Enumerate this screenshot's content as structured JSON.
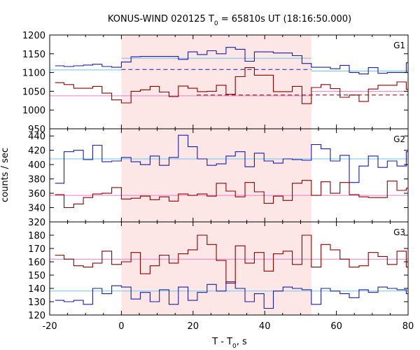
{
  "chart_data": {
    "type": "line",
    "title_main": "KONUS-WIND 020125 T",
    "title_sub": "0",
    "title_rest": " = 65810s UT (18:16:50.000)",
    "xlabel_main": "T - T",
    "xlabel_sub": "0",
    "xlabel_rest": ", s",
    "ylabel": "counts / sec",
    "xlim": [
      -20,
      80
    ],
    "x_ticks": [
      "-20",
      "0",
      "20",
      "40",
      "60",
      "80"
    ],
    "shaded_interval": [
      0,
      53
    ],
    "colors": {
      "high_band": "#1c1ca8",
      "low_band": "#8b0000",
      "bg_fit_light": "#6ec8e8",
      "bg_fit_pink": "#e87ec8",
      "shade": "#fde6e6"
    },
    "panels": [
      {
        "label": "G1",
        "ylim": [
          950,
          1200
        ],
        "y_ticks": [
          950,
          1000,
          1050,
          1100,
          1150,
          1200
        ],
        "y_tick_labels": [
          "950",
          "1000",
          "1050",
          "1100",
          "1150",
          "1200"
        ],
        "series": [
          {
            "color": "high_band",
            "bin_edges": [
              -18.5,
              -16.0,
              -13.3,
              -10.6,
              -8.0,
              -5.4,
              -2.7,
              0,
              2.7,
              5.3,
              8.0,
              10.6,
              13.3,
              15.9,
              18.6,
              21.2,
              23.9,
              26.5,
              29.2,
              31.8,
              34.5,
              37.1,
              39.8,
              42.4,
              45.1,
              47.7,
              50.4,
              53.0,
              55.7,
              58.3,
              61.0,
              63.6,
              66.3,
              68.9,
              71.6,
              74.2,
              76.9,
              79.5,
              80
            ],
            "values": [
              1118,
              1116,
              1118,
              1120,
              1122,
              1116,
              1114,
              1128,
              1142,
              1143,
              1143,
              1143,
              1143,
              1135,
              1155,
              1148,
              1158,
              1150,
              1167,
              1162,
              1130,
              1155,
              1155,
              1152,
              1152,
              1145,
              1124,
              1114,
              1114,
              1110,
              1119,
              1100,
              1096,
              1113,
              1098,
              1100,
              1100,
              1126
            ]
          },
          {
            "color": "low_band",
            "bin_edges": [
              -18.5,
              -16.0,
              -13.3,
              -10.6,
              -8.0,
              -5.4,
              -2.7,
              0,
              2.7,
              5.3,
              8.0,
              10.6,
              13.3,
              15.9,
              18.6,
              21.2,
              23.9,
              26.5,
              29.2,
              31.8,
              34.5,
              37.1,
              39.8,
              42.4,
              45.1,
              47.7,
              50.4,
              53.0,
              55.7,
              58.3,
              61.0,
              63.6,
              66.3,
              68.9,
              71.6,
              74.2,
              76.9,
              79.5,
              80
            ],
            "values": [
              1073,
              1068,
              1058,
              1058,
              1063,
              1045,
              1027,
              1019,
              1050,
              1054,
              1063,
              1048,
              1036,
              1064,
              1058,
              1049,
              1050,
              1066,
              1042,
              1089,
              1113,
              1093,
              1093,
              1049,
              1049,
              1063,
              1017,
              1060,
              1068,
              1057,
              1034,
              1040,
              1023,
              1056,
              1066,
              1066,
              1075,
              1055
            ]
          }
        ],
        "fits": [
          {
            "color": "bg_fit_light",
            "style": "solid",
            "x": [
              -20,
              0
            ],
            "y": 1107
          },
          {
            "color": "bg_fit_light",
            "style": "solid",
            "x": [
              0,
              53
            ],
            "y": 1138
          },
          {
            "color": "bg_fit_light",
            "style": "solid",
            "x": [
              53,
              80
            ],
            "y": 1104
          },
          {
            "color": "high_band",
            "style": "dashed",
            "x": [
              0,
              53
            ],
            "y": 1108
          },
          {
            "color": "bg_fit_pink",
            "style": "solid",
            "x": [
              -20,
              0
            ],
            "y": 1038
          },
          {
            "color": "bg_fit_pink",
            "style": "solid",
            "x": [
              0,
              53
            ],
            "y": 1038
          },
          {
            "color": "bg_fit_pink",
            "style": "solid",
            "x": [
              53,
              80
            ],
            "y": 1050
          },
          {
            "color": "low_band",
            "style": "dashed",
            "x": [
              21,
              80
            ],
            "y": 1040
          }
        ]
      },
      {
        "label": "G2",
        "ylim": [
          320,
          450
        ],
        "y_ticks": [
          320,
          340,
          360,
          380,
          400,
          420,
          440
        ],
        "y_tick_labels": [
          "320",
          "340",
          "360",
          "380",
          "400",
          "420",
          "440"
        ],
        "series": [
          {
            "color": "high_band",
            "bin_edges": [
              -18.5,
              -16.0,
              -13.3,
              -10.6,
              -8.0,
              -5.4,
              -2.7,
              0,
              2.7,
              5.3,
              8.0,
              10.6,
              13.3,
              15.9,
              18.6,
              21.2,
              23.9,
              26.5,
              29.2,
              31.8,
              34.5,
              37.1,
              39.8,
              42.4,
              45.1,
              47.7,
              50.4,
              53.0,
              55.7,
              58.3,
              61.0,
              63.6,
              66.3,
              68.9,
              71.6,
              74.2,
              76.9,
              79.5,
              80
            ],
            "values": [
              374,
              418,
              420,
              407,
              427,
              404,
              405,
              410,
              404,
              400,
              412,
              399,
              410,
              441,
              425,
              408,
              399,
              401,
              412,
              418,
              397,
              416,
              405,
              402,
              408,
              407,
              406,
              428,
              422,
              405,
              413,
              375,
              398,
              412,
              396,
              405,
              398,
              418
            ]
          },
          {
            "color": "low_band",
            "bin_edges": [
              -18.5,
              -16.0,
              -13.3,
              -10.6,
              -8.0,
              -5.4,
              -2.7,
              0,
              2.7,
              5.3,
              8.0,
              10.6,
              13.3,
              15.9,
              18.6,
              21.2,
              23.9,
              26.5,
              29.2,
              31.8,
              34.5,
              37.1,
              39.8,
              42.4,
              45.1,
              47.7,
              50.4,
              53.0,
              55.7,
              58.3,
              61.0,
              63.6,
              66.3,
              68.9,
              71.6,
              74.2,
              76.9,
              79.5,
              80
            ],
            "values": [
              358,
              340,
              345,
              354,
              359,
              360,
              368,
              352,
              353,
              356,
              351,
              355,
              349,
              359,
              357,
              359,
              356,
              374,
              363,
              355,
              375,
              362,
              346,
              356,
              350,
              374,
              378,
              357,
              376,
              360,
              375,
              358,
              355,
              354,
              354,
              377,
              364,
              367
            ]
          }
        ],
        "fits": [
          {
            "color": "bg_fit_light",
            "style": "solid",
            "x": [
              -20,
              80
            ],
            "y": 408
          },
          {
            "color": "bg_fit_pink",
            "style": "solid",
            "x": [
              -20,
              80
            ],
            "y": 357
          }
        ]
      },
      {
        "label": "G3",
        "ylim": [
          120,
          190
        ],
        "y_ticks": [
          120,
          130,
          140,
          150,
          160,
          170,
          180
        ],
        "y_tick_labels": [
          "120",
          "130",
          "140",
          "150",
          "160",
          "170",
          "180"
        ],
        "series": [
          {
            "color": "high_band",
            "bin_edges": [
              -18.5,
              -16.0,
              -13.3,
              -10.6,
              -8.0,
              -5.4,
              -2.7,
              0,
              2.7,
              5.3,
              8.0,
              10.6,
              13.3,
              15.9,
              18.6,
              21.2,
              23.9,
              26.5,
              29.2,
              31.8,
              34.5,
              37.1,
              39.8,
              42.4,
              45.1,
              47.7,
              50.4,
              53.0,
              55.7,
              58.3,
              61.0,
              63.6,
              66.3,
              68.9,
              71.6,
              74.2,
              76.9,
              79.5,
              80
            ],
            "values": [
              131,
              130,
              131,
              128,
              140,
              136,
              142,
              141,
              132,
              137,
              130,
              139,
              128,
              141,
              131,
              137,
              143,
              138,
              145,
              140,
              130,
              136,
              125,
              138,
              141,
              140,
              139,
              128,
              140,
              138,
              136,
              133,
              139,
              137,
              141,
              140,
              139,
              136
            ]
          },
          {
            "color": "low_band",
            "bin_edges": [
              -18.5,
              -16.0,
              -13.3,
              -10.6,
              -8.0,
              -5.4,
              -2.7,
              0,
              2.7,
              5.3,
              8.0,
              10.6,
              13.3,
              15.9,
              18.6,
              21.2,
              23.9,
              26.5,
              29.2,
              31.8,
              34.5,
              37.1,
              39.8,
              42.4,
              45.1,
              47.7,
              50.4,
              53.0,
              55.7,
              58.3,
              61.0,
              63.6,
              66.3,
              68.9,
              71.6,
              74.2,
              76.9,
              79.5,
              80
            ],
            "values": [
              165,
              162,
              157,
              156,
              159,
              168,
              158,
              160,
              167,
              151,
              157,
              165,
              159,
              166,
              169,
              180,
              173,
              161,
              144,
              172,
              159,
              167,
              153,
              166,
              168,
              158,
              180,
              156,
              173,
              169,
              162,
              156,
              157,
              167,
              164,
              158,
              168,
              156
            ]
          }
        ],
        "fits": [
          {
            "color": "bg_fit_pink",
            "style": "solid",
            "x": [
              -20,
              80
            ],
            "y": 162
          },
          {
            "color": "bg_fit_light",
            "style": "solid",
            "x": [
              -20,
              80
            ],
            "y": 138
          }
        ]
      }
    ]
  }
}
